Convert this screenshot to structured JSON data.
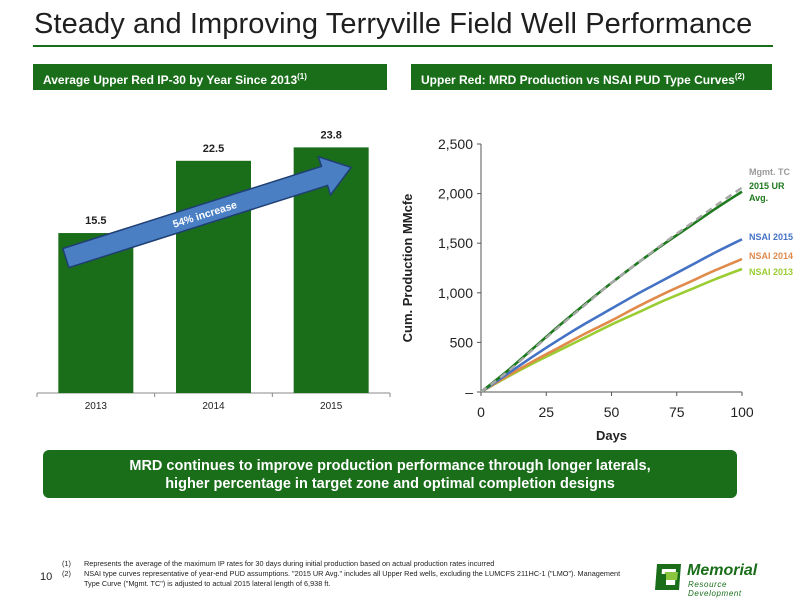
{
  "slide": {
    "title": "Steady and Improving Terryville Field Well Performance",
    "page_number": "10",
    "left_header": "Average Upper Red IP-30 by Year Since 2013",
    "left_header_sup": "(1)",
    "right_header": "Upper Red: MRD Production vs NSAI PUD Type Curves",
    "right_header_sup": "(2)",
    "banner_line1": "MRD continues to improve production performance through longer laterals,",
    "banner_line2": "higher percentage in target zone and optimal completion designs",
    "footnotes": [
      {
        "num": "(1)",
        "text": "Represents the average of the maximum IP rates for 30 days during initial production based on actual production rates incurred"
      },
      {
        "num": "(2)",
        "text": "NSAI type curves representative of year-end PUD assumptions.  \"2015 UR Avg.\" includes all Upper Red wells, excluding the LUMCFS 211HC-1 (\"LMO\"). Management Type Curve (\"Mgmt. TC\") is adjusted to actual 2015 lateral length of 6,938 ft."
      }
    ],
    "logo": {
      "name": "Memorial",
      "tagline": "Resource Development"
    },
    "colors": {
      "brand_green": "#1a6e1a",
      "bar_green": "#1a6e1a",
      "arrow_blue": "#4a7fc4"
    }
  },
  "chart_data": [
    {
      "type": "bar",
      "categories": [
        "2013",
        "2014",
        "2015"
      ],
      "values": [
        15.5,
        22.5,
        23.8
      ],
      "value_labels": [
        "15.5",
        "22.5",
        "23.8"
      ],
      "ylim": [
        0,
        25
      ],
      "annotation": "54% increase",
      "grid": false
    },
    {
      "type": "line",
      "xlabel": "Days",
      "ylabel": "Cum. Production MMcfe",
      "xlim": [
        0,
        100
      ],
      "ylim": [
        0,
        2500
      ],
      "x_ticks": [
        0,
        25,
        50,
        75,
        100
      ],
      "x_tick_labels": [
        "0",
        "25",
        "50",
        "75",
        "100"
      ],
      "y_ticks": [
        0,
        500,
        1000,
        1500,
        2000,
        2500
      ],
      "y_tick_labels": [
        "–",
        "500",
        "1,000",
        "1,500",
        "2,000",
        "2,500"
      ],
      "grid": false,
      "series": [
        {
          "name": "Mgmt. TC",
          "color": "#a8a8a8",
          "dashed": true,
          "x": [
            0,
            10,
            20,
            30,
            40,
            50,
            60,
            70,
            80,
            90,
            100
          ],
          "y": [
            0,
            200,
            430,
            660,
            880,
            1100,
            1300,
            1500,
            1690,
            1880,
            2060
          ]
        },
        {
          "name": "2015 UR Avg.",
          "color": "#1e7a1e",
          "dashed": false,
          "x": [
            0,
            10,
            20,
            30,
            40,
            50,
            60,
            70,
            80,
            90,
            100
          ],
          "y": [
            0,
            210,
            440,
            670,
            890,
            1100,
            1300,
            1490,
            1670,
            1850,
            2020
          ]
        },
        {
          "name": "NSAI 2015",
          "color": "#4472c4",
          "dashed": false,
          "x": [
            0,
            10,
            20,
            30,
            40,
            50,
            60,
            70,
            80,
            90,
            100
          ],
          "y": [
            0,
            180,
            360,
            530,
            690,
            840,
            990,
            1130,
            1270,
            1410,
            1540
          ]
        },
        {
          "name": "NSAI 2014",
          "color": "#e08a4c",
          "dashed": false,
          "x": [
            0,
            10,
            20,
            30,
            40,
            50,
            60,
            70,
            80,
            90,
            100
          ],
          "y": [
            0,
            160,
            310,
            450,
            590,
            720,
            860,
            990,
            1110,
            1230,
            1340
          ]
        },
        {
          "name": "NSAI 2013",
          "color": "#9acd32",
          "dashed": false,
          "x": [
            0,
            10,
            20,
            30,
            40,
            50,
            60,
            70,
            80,
            90,
            100
          ],
          "y": [
            0,
            150,
            290,
            420,
            550,
            680,
            800,
            920,
            1030,
            1140,
            1240
          ]
        }
      ]
    }
  ]
}
